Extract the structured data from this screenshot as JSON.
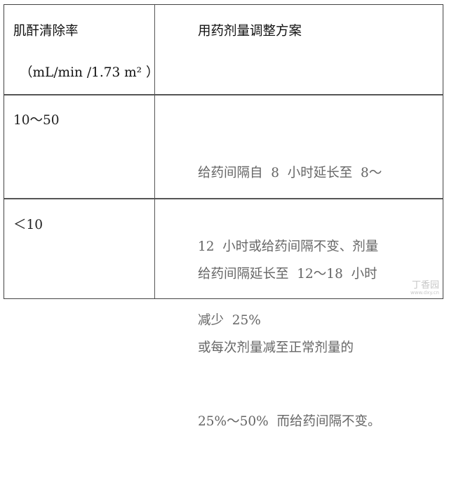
{
  "table": {
    "headers": {
      "col1": "肌酐清除率",
      "col1_unit": "（mL/min /1.73 m² ）",
      "col2": "用药剂量调整方案"
    },
    "rows": [
      {
        "clearance": "10～50",
        "lines": [
          "给药间隔自  8  小时延长至  8～",
          "12  小时或给药间隔不变、剂量",
          "减少  25%"
        ]
      },
      {
        "clearance": "＜10",
        "lines": [
          "给药间隔延长至  12～18  小时",
          "或每次剂量减至正常剂量的",
          "25%～50%  而给药间隔不变。"
        ]
      }
    ]
  },
  "watermark": {
    "name": "丁香园",
    "url": "www.dxy.cn"
  }
}
